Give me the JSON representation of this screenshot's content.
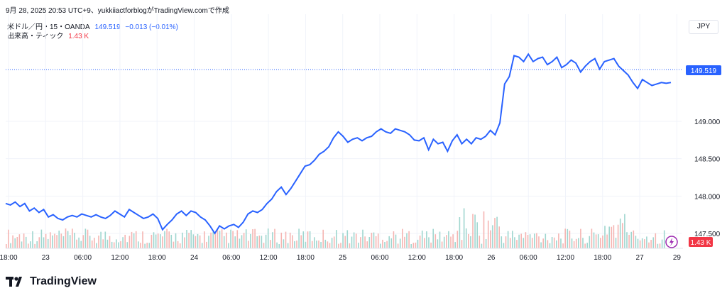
{
  "header": {
    "snapshot": "9月 28, 2025 20:53 UTC+9、yukkiiactforblogがTradingView.comで作成"
  },
  "legend": {
    "symbol": "米ドル／円・15・OANDA",
    "price": "149.519",
    "change": "−0.013 (−0.01%)",
    "volume_label": "出来高・ティック",
    "volume_value": "1.43 K"
  },
  "currency_button": "JPY",
  "price_badge": "149.519",
  "volume_badge": "1.43 K",
  "brand": "TradingView",
  "colors": {
    "line": "#2962ff",
    "volume_up": "#26a69a",
    "volume_down": "#ef5350",
    "price_badge": "#2962ff",
    "volume_badge": "#f23645"
  },
  "chart_data": {
    "type": "line",
    "title": "米ドル／円・15・OANDA",
    "ylim": [
      147.3,
      150.15
    ],
    "y_ticks": [
      "147.500",
      "148.000",
      "148.500",
      "149.000",
      "149.519"
    ],
    "x_ticks": [
      "18:00",
      "23",
      "06:00",
      "12:00",
      "18:00",
      "24",
      "06:00",
      "12:00",
      "18:00",
      "25",
      "06:00",
      "12:00",
      "18:00",
      "26",
      "06:00",
      "12:00",
      "18:00",
      "27",
      "29"
    ],
    "series": [
      {
        "values": [
          147.9,
          147.88,
          147.92,
          147.86,
          147.9,
          147.8,
          147.84,
          147.78,
          147.82,
          147.72,
          147.75,
          147.7,
          147.68,
          147.72,
          147.74,
          147.72,
          147.76,
          147.74,
          147.72,
          147.75,
          147.72,
          147.7,
          147.74,
          147.8,
          147.76,
          147.72,
          147.82,
          147.78,
          147.74,
          147.7,
          147.72,
          147.76,
          147.7,
          147.55,
          147.62,
          147.68,
          147.76,
          147.8,
          147.74,
          147.8,
          147.78,
          147.72,
          147.68,
          147.6,
          147.5,
          147.6,
          147.56,
          147.6,
          147.62,
          147.58,
          147.65,
          147.76,
          147.8,
          147.78,
          147.82,
          147.9,
          147.96,
          148.06,
          148.12,
          148.02,
          148.1,
          148.2,
          148.3,
          148.4,
          148.42,
          148.48,
          148.56,
          148.6,
          148.66,
          148.78,
          148.86,
          148.8,
          148.72,
          148.76,
          148.78,
          148.74,
          148.78,
          148.8,
          148.86,
          148.9,
          148.86,
          148.84,
          148.9,
          148.88,
          148.86,
          148.82,
          148.75,
          148.74,
          148.78,
          148.62,
          148.76,
          148.7,
          148.72,
          148.6,
          148.74,
          148.82,
          148.7,
          148.76,
          148.7,
          148.78,
          148.76,
          148.8,
          148.88,
          148.82,
          148.98,
          149.5,
          149.6,
          149.88,
          149.86,
          149.8,
          149.9,
          149.8,
          149.84,
          149.86,
          149.76,
          149.8,
          149.86,
          149.72,
          149.76,
          149.82,
          149.78,
          149.66,
          149.74,
          149.8,
          149.84,
          149.7,
          149.8,
          149.82,
          149.84,
          149.74,
          149.68,
          149.62,
          149.52,
          149.44,
          149.56,
          149.52,
          149.48,
          149.5,
          149.52,
          149.51,
          149.52
        ]
      }
    ],
    "volume": {
      "name": "出来高・ティック",
      "latest": "1.43 K"
    }
  }
}
